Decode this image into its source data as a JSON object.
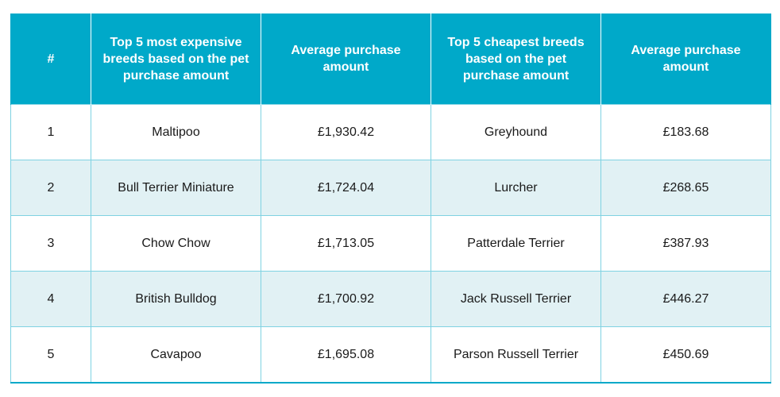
{
  "table": {
    "headers": [
      "#",
      "Top 5 most expensive breeds based on the pet purchase amount",
      "Average purchase amount",
      "Top 5 cheapest breeds based on the pet purchase amount",
      "Average purchase amount"
    ],
    "rows": [
      {
        "rank": "1",
        "expensive_breed": "Maltipoo",
        "expensive_amount": "£1,930.42",
        "cheap_breed": "Greyhound",
        "cheap_amount": "£183.68"
      },
      {
        "rank": "2",
        "expensive_breed": "Bull Terrier Miniature",
        "expensive_amount": "£1,724.04",
        "cheap_breed": "Lurcher",
        "cheap_amount": "£268.65"
      },
      {
        "rank": "3",
        "expensive_breed": "Chow Chow",
        "expensive_amount": "£1,713.05",
        "cheap_breed": "Patterdale Terrier",
        "cheap_amount": "£387.93"
      },
      {
        "rank": "4",
        "expensive_breed": "British Bulldog",
        "expensive_amount": "£1,700.92",
        "cheap_breed": "Jack Russell Terrier",
        "cheap_amount": "£446.27"
      },
      {
        "rank": "5",
        "expensive_breed": "Cavapoo",
        "expensive_amount": "£1,695.08",
        "cheap_breed": "Parson Russell Terrier",
        "cheap_amount": "£450.69"
      }
    ]
  },
  "colors": {
    "header_bg": "#00a9c9",
    "stripe_bg": "#e1f1f4",
    "border": "#7fd2e2"
  }
}
